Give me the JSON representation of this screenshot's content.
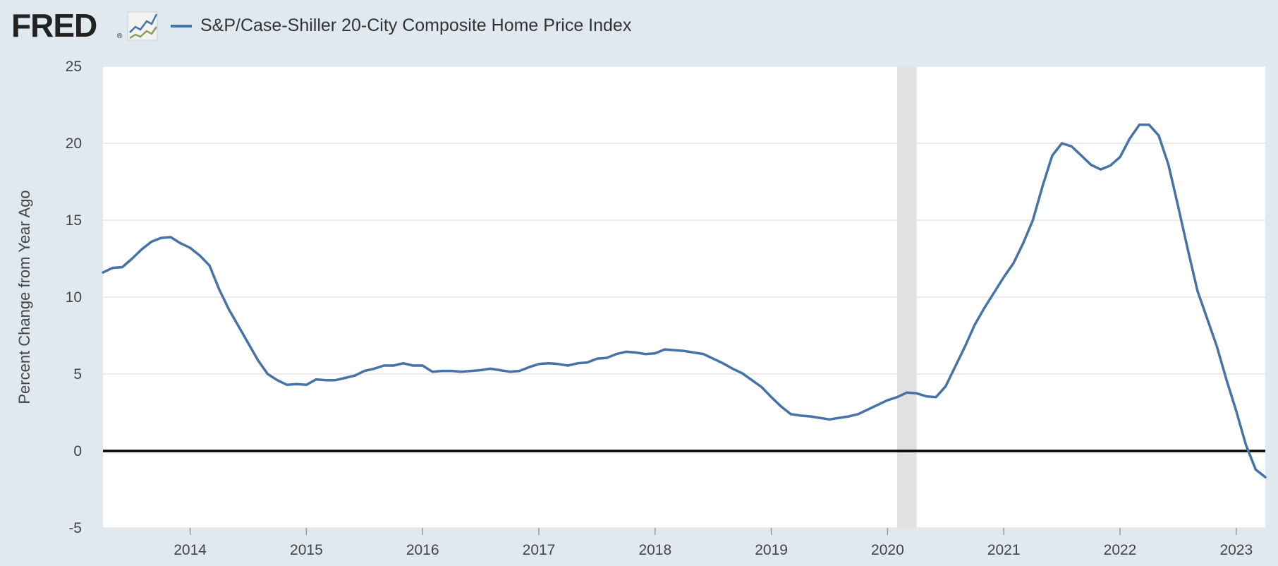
{
  "header": {
    "logo_text": "FRED",
    "logo_reg": "®"
  },
  "colors": {
    "series": "#4572a7",
    "background": "#e1e9f0",
    "plot": "#ffffff",
    "recession": "#e1e1e1",
    "zero_line": "#000000",
    "grid": "#e6e6e6"
  },
  "chart_data": {
    "type": "line",
    "title": "",
    "legend": [
      "S&P/Case-Shiller 20-City Composite Home Price Index"
    ],
    "ylabel": "Percent Change from Year Ago",
    "xlabel": "",
    "ylim": [
      -5,
      25
    ],
    "yticks": [
      "25",
      "20",
      "15",
      "10",
      "5",
      "0",
      "-5"
    ],
    "xlim": [
      2013.25,
      2023.25
    ],
    "xticks": [
      "2014",
      "2015",
      "2016",
      "2017",
      "2018",
      "2019",
      "2020",
      "2021",
      "2022",
      "2023"
    ],
    "recession": [
      2020.083,
      2020.25
    ],
    "series": [
      {
        "name": "S&P/Case-Shiller 20-City Composite Home Price Index",
        "x": [
          2013.25,
          2013.333,
          2013.417,
          2013.5,
          2013.583,
          2013.667,
          2013.75,
          2013.833,
          2013.917,
          2014.0,
          2014.083,
          2014.167,
          2014.25,
          2014.333,
          2014.417,
          2014.5,
          2014.583,
          2014.667,
          2014.75,
          2014.833,
          2014.917,
          2015.0,
          2015.083,
          2015.167,
          2015.25,
          2015.333,
          2015.417,
          2015.5,
          2015.583,
          2015.667,
          2015.75,
          2015.833,
          2015.917,
          2016.0,
          2016.083,
          2016.167,
          2016.25,
          2016.333,
          2016.417,
          2016.5,
          2016.583,
          2016.667,
          2016.75,
          2016.833,
          2016.917,
          2017.0,
          2017.083,
          2017.167,
          2017.25,
          2017.333,
          2017.417,
          2017.5,
          2017.583,
          2017.667,
          2017.75,
          2017.833,
          2017.917,
          2018.0,
          2018.083,
          2018.167,
          2018.25,
          2018.333,
          2018.417,
          2018.5,
          2018.583,
          2018.667,
          2018.75,
          2018.833,
          2018.917,
          2019.0,
          2019.083,
          2019.167,
          2019.25,
          2019.333,
          2019.417,
          2019.5,
          2019.583,
          2019.667,
          2019.75,
          2019.833,
          2019.917,
          2020.0,
          2020.083,
          2020.167,
          2020.25,
          2020.333,
          2020.417,
          2020.5,
          2020.583,
          2020.667,
          2020.75,
          2020.833,
          2020.917,
          2021.0,
          2021.083,
          2021.167,
          2021.25,
          2021.333,
          2021.417,
          2021.5,
          2021.583,
          2021.667,
          2021.75,
          2021.833,
          2021.917,
          2022.0,
          2022.083,
          2022.167,
          2022.25,
          2022.333,
          2022.417,
          2022.5,
          2022.583,
          2022.667,
          2022.75,
          2022.833,
          2022.917,
          2023.0,
          2023.083,
          2023.167,
          2023.25
        ],
        "values": [
          11.6,
          11.9,
          11.95,
          12.5,
          13.1,
          13.6,
          13.85,
          13.9,
          13.5,
          13.2,
          12.7,
          12.05,
          10.5,
          9.2,
          8.1,
          7.0,
          5.9,
          5.0,
          4.6,
          4.3,
          4.35,
          4.3,
          4.65,
          4.6,
          4.6,
          4.75,
          4.9,
          5.2,
          5.35,
          5.55,
          5.55,
          5.7,
          5.55,
          5.55,
          5.15,
          5.2,
          5.2,
          5.15,
          5.2,
          5.25,
          5.35,
          5.25,
          5.15,
          5.2,
          5.45,
          5.65,
          5.7,
          5.65,
          5.55,
          5.7,
          5.75,
          6.0,
          6.05,
          6.3,
          6.45,
          6.4,
          6.3,
          6.35,
          6.6,
          6.55,
          6.5,
          6.4,
          6.3,
          6.0,
          5.7,
          5.35,
          5.05,
          4.6,
          4.15,
          3.5,
          2.9,
          2.4,
          2.3,
          2.25,
          2.15,
          2.05,
          2.15,
          2.25,
          2.4,
          2.7,
          3.0,
          3.3,
          3.5,
          3.8,
          3.75,
          3.55,
          3.5,
          4.2,
          5.5,
          6.8,
          8.2,
          9.3,
          10.3,
          11.3,
          12.2,
          13.5,
          15.0,
          17.2,
          19.2,
          20.0,
          19.8,
          19.2,
          18.6,
          18.3,
          18.55,
          19.1,
          20.3,
          21.2,
          21.2,
          20.5,
          18.6,
          15.9,
          13.1,
          10.4,
          8.6,
          6.8,
          4.6,
          2.6,
          0.4,
          -1.2,
          -1.7
        ]
      }
    ]
  }
}
